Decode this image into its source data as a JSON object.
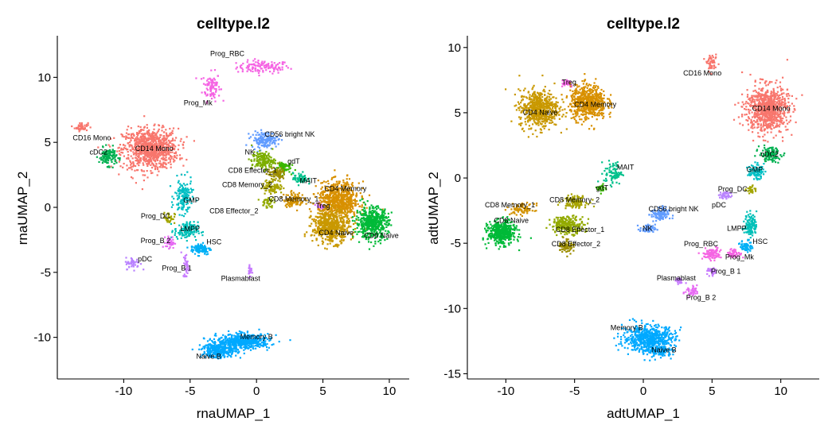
{
  "chart_data": [
    {
      "type": "scatter",
      "title": "celltype.l2",
      "xlabel": "rnaUMAP_1",
      "ylabel": "rnaUMAP_2",
      "xlim": [
        -15,
        11.5
      ],
      "ylim": [
        -13.2,
        13.2
      ],
      "xticks": [
        -10,
        -5,
        0,
        5,
        10
      ],
      "yticks": [
        -10,
        -5,
        0,
        5,
        10
      ],
      "clusters": [
        {
          "name": "Prog_RBC",
          "label": "Prog_RBC",
          "color": "#f564e3",
          "x": 0.5,
          "y": 10.8,
          "sx": 1.8,
          "sy": 0.45,
          "n": 120,
          "lx": -2.2,
          "ly": 11.8
        },
        {
          "name": "Prog_Mk",
          "label": "Prog_Mk",
          "color": "#f564e3",
          "x": -3.4,
          "y": 9.3,
          "sx": 0.6,
          "sy": 1.0,
          "n": 90,
          "lx": -4.4,
          "ly": 8.0
        },
        {
          "name": "CD16 Mono",
          "label": "CD16 Mono",
          "color": "#f8766d",
          "x": -13.2,
          "y": 6.2,
          "sx": 0.45,
          "sy": 0.3,
          "n": 45,
          "lx": -12.4,
          "ly": 5.3
        },
        {
          "name": "CD14 Mono",
          "label": "CD14 Mono",
          "color": "#f8766d",
          "x": -8.0,
          "y": 4.5,
          "sx": 1.9,
          "sy": 1.4,
          "n": 900,
          "lx": -7.7,
          "ly": 4.5
        },
        {
          "name": "cDC2",
          "label": "cDC2",
          "color": "#00b050",
          "x": -11.2,
          "y": 3.9,
          "sx": 0.6,
          "sy": 0.6,
          "n": 120,
          "lx": -11.9,
          "ly": 4.2
        },
        {
          "name": "GMP",
          "label": "GMP",
          "color": "#00bfc4",
          "x": -5.5,
          "y": 0.8,
          "sx": 0.6,
          "sy": 1.2,
          "n": 150,
          "lx": -4.9,
          "ly": 0.5
        },
        {
          "name": "Prog_DC",
          "label": "Prog_DC",
          "color": "#a3a500",
          "x": -6.6,
          "y": -0.8,
          "sx": 0.4,
          "sy": 0.4,
          "n": 40,
          "lx": -7.6,
          "ly": -0.7
        },
        {
          "name": "LMPP",
          "label": "LMPP",
          "color": "#00c0b8",
          "x": -5.3,
          "y": -1.8,
          "sx": 0.8,
          "sy": 0.6,
          "n": 140,
          "lx": -5.0,
          "ly": -1.7
        },
        {
          "name": "Prog_B 2",
          "label": "Prog_B 2",
          "color": "#e76bf3",
          "x": -6.5,
          "y": -2.7,
          "sx": 0.3,
          "sy": 0.4,
          "n": 40,
          "lx": -7.6,
          "ly": -2.6
        },
        {
          "name": "HSC",
          "label": "HSC",
          "color": "#00b0f6",
          "x": -4.2,
          "y": -3.2,
          "sx": 0.7,
          "sy": 0.4,
          "n": 100,
          "lx": -3.2,
          "ly": -2.7
        },
        {
          "name": "pDC",
          "label": "pDC",
          "color": "#b983ff",
          "x": -9.3,
          "y": -4.3,
          "sx": 0.5,
          "sy": 0.4,
          "n": 50,
          "lx": -8.4,
          "ly": -4.0
        },
        {
          "name": "Prog_B 1",
          "label": "Prog_B 1",
          "color": "#c77cff",
          "x": -5.3,
          "y": -4.5,
          "sx": 0.2,
          "sy": 0.9,
          "n": 40,
          "lx": -6.0,
          "ly": -4.7
        },
        {
          "name": "Plasmablast",
          "label": "Plasmablast",
          "color": "#c77cff",
          "x": -0.5,
          "y": -4.8,
          "sx": 0.12,
          "sy": 0.5,
          "n": 25,
          "lx": -1.2,
          "ly": -5.5
        },
        {
          "name": "CD56 bright NK",
          "label": "CD56 bright NK",
          "color": "#619cff",
          "x": 0.6,
          "y": 5.2,
          "sx": 0.9,
          "sy": 0.55,
          "n": 150,
          "lx": 2.5,
          "ly": 5.6
        },
        {
          "name": "NK",
          "label": "NK",
          "color": "#7cae00",
          "x": 0.5,
          "y": 3.6,
          "sx": 0.8,
          "sy": 0.6,
          "n": 160,
          "lx": -0.5,
          "ly": 4.2
        },
        {
          "name": "gdT",
          "label": "gdT",
          "color": "#39b600",
          "x": 2.0,
          "y": 3.1,
          "sx": 0.5,
          "sy": 0.4,
          "n": 60,
          "lx": 2.8,
          "ly": 3.5
        },
        {
          "name": "CD8 Effector_1",
          "label": "CD8 Effector_1",
          "color": "#9c8d00",
          "x": 1.5,
          "y": 2.6,
          "sx": 0.6,
          "sy": 0.4,
          "n": 80,
          "lx": -0.3,
          "ly": 2.8
        },
        {
          "name": "MAIT",
          "label": "MAIT",
          "color": "#00c08b",
          "x": 3.3,
          "y": 2.2,
          "sx": 0.5,
          "sy": 0.4,
          "n": 60,
          "lx": 3.9,
          "ly": 2.0
        },
        {
          "name": "CD8 Memory_2",
          "label": "CD8 Memory_2",
          "color": "#a8a400",
          "x": 1.2,
          "y": 1.6,
          "sx": 0.7,
          "sy": 0.5,
          "n": 100,
          "lx": -0.7,
          "ly": 1.7
        },
        {
          "name": "CD8 Memory_1",
          "label": "CD8 Memory_1",
          "color": "#d39200",
          "x": 2.8,
          "y": 0.6,
          "sx": 0.7,
          "sy": 0.5,
          "n": 100,
          "lx": 2.8,
          "ly": 0.6
        },
        {
          "name": "CD8 Effector_2",
          "label": "CD8 Effector_2",
          "color": "#93aa00",
          "x": 0.8,
          "y": 0.4,
          "sx": 0.4,
          "sy": 0.4,
          "n": 40,
          "lx": -1.7,
          "ly": -0.3
        },
        {
          "name": "Treg",
          "label": "Treg",
          "color": "#db72fb",
          "x": 4.8,
          "y": 0.1,
          "sx": 0.3,
          "sy": 0.3,
          "n": 30,
          "lx": 5.0,
          "ly": 0.1
        },
        {
          "name": "CD4 Memory",
          "label": "CD4 Memory",
          "color": "#d89000",
          "x": 6.2,
          "y": 0.5,
          "sx": 1.4,
          "sy": 1.3,
          "n": 700,
          "lx": 6.7,
          "ly": 1.4
        },
        {
          "name": "CD4 Naive",
          "label": "CD4 Naive",
          "color": "#c99800",
          "x": 5.6,
          "y": -1.5,
          "sx": 1.3,
          "sy": 1.1,
          "n": 500,
          "lx": 6.0,
          "ly": -2.0
        },
        {
          "name": "CD8 Naive",
          "label": "CD8 Naive",
          "color": "#00ba38",
          "x": 8.7,
          "y": -1.2,
          "sx": 1.1,
          "sy": 1.1,
          "n": 500,
          "lx": 9.4,
          "ly": -2.2
        },
        {
          "name": "Memory B",
          "label": "Memory B",
          "color": "#00a9ff",
          "x": -1.0,
          "y": -10.3,
          "sx": 1.8,
          "sy": 0.5,
          "n": 500,
          "lx": 0.0,
          "ly": -10.0
        },
        {
          "name": "Naive B",
          "label": "Naive B",
          "color": "#00a9ff",
          "x": -2.8,
          "y": -11.0,
          "sx": 1.2,
          "sy": 0.5,
          "n": 300,
          "lx": -3.6,
          "ly": -11.5
        }
      ]
    },
    {
      "type": "scatter",
      "title": "celltype.l2",
      "xlabel": "adtUMAP_1",
      "ylabel": "adtUMAP_2",
      "xlim": [
        -12.8,
        12.8
      ],
      "ylim": [
        -15.4,
        10.9
      ],
      "xticks": [
        -10,
        -5,
        0,
        5,
        10
      ],
      "yticks": [
        -15,
        -10,
        -5,
        0,
        5,
        10
      ],
      "clusters": [
        {
          "name": "CD16 Mono",
          "label": "CD16 Mono",
          "color": "#f8766d",
          "x": 5.0,
          "y": 8.8,
          "sx": 0.35,
          "sy": 0.5,
          "n": 50,
          "lx": 4.3,
          "ly": 8.0
        },
        {
          "name": "CD14 Mono",
          "label": "CD14 Mono",
          "color": "#f8766d",
          "x": 9.0,
          "y": 5.3,
          "sx": 1.4,
          "sy": 1.6,
          "n": 800,
          "lx": 9.3,
          "ly": 5.3
        },
        {
          "name": "cDC2",
          "label": "cDC2",
          "color": "#00b050",
          "x": 9.2,
          "y": 1.8,
          "sx": 0.7,
          "sy": 0.5,
          "n": 120,
          "lx": 9.2,
          "ly": 1.8
        },
        {
          "name": "GMP",
          "label": "GMP",
          "color": "#00bfc4",
          "x": 8.2,
          "y": 0.5,
          "sx": 0.5,
          "sy": 0.5,
          "n": 90,
          "lx": 8.1,
          "ly": 0.6
        },
        {
          "name": "Prog_DC",
          "label": "Prog_DC",
          "color": "#a3a500",
          "x": 7.8,
          "y": -0.9,
          "sx": 0.3,
          "sy": 0.3,
          "n": 25,
          "lx": 6.5,
          "ly": -0.9
        },
        {
          "name": "pDC",
          "label": "pDC",
          "color": "#b983ff",
          "x": 6.0,
          "y": -1.3,
          "sx": 0.4,
          "sy": 0.3,
          "n": 40,
          "lx": 5.5,
          "ly": -2.1
        },
        {
          "name": "LMPP",
          "label": "LMPP",
          "color": "#00c0b8",
          "x": 7.8,
          "y": -3.6,
          "sx": 0.4,
          "sy": 0.8,
          "n": 120,
          "lx": 6.8,
          "ly": -3.9
        },
        {
          "name": "HSC",
          "label": "HSC",
          "color": "#00b0f6",
          "x": 7.5,
          "y": -5.2,
          "sx": 0.4,
          "sy": 0.4,
          "n": 60,
          "lx": 8.5,
          "ly": -4.9
        },
        {
          "name": "Prog_Mk",
          "label": "Prog_Mk",
          "color": "#f564e3",
          "x": 6.6,
          "y": -5.8,
          "sx": 0.5,
          "sy": 0.3,
          "n": 50,
          "lx": 7.0,
          "ly": -6.1
        },
        {
          "name": "Prog_RBC",
          "label": "Prog_RBC",
          "color": "#f564e3",
          "x": 5.0,
          "y": -5.8,
          "sx": 0.6,
          "sy": 0.4,
          "n": 90,
          "lx": 4.2,
          "ly": -5.1
        },
        {
          "name": "Prog_B 1",
          "label": "Prog_B 1",
          "color": "#c77cff",
          "x": 5.0,
          "y": -7.2,
          "sx": 0.3,
          "sy": 0.3,
          "n": 30,
          "lx": 6.0,
          "ly": -7.2
        },
        {
          "name": "Plasmablast",
          "label": "Plasmablast",
          "color": "#c77cff",
          "x": 2.6,
          "y": -7.9,
          "sx": 0.3,
          "sy": 0.2,
          "n": 20,
          "lx": 2.4,
          "ly": -7.7
        },
        {
          "name": "Prog_B 2",
          "label": "Prog_B 2",
          "color": "#e76bf3",
          "x": 3.5,
          "y": -8.7,
          "sx": 0.5,
          "sy": 0.4,
          "n": 40,
          "lx": 4.2,
          "ly": -9.2
        },
        {
          "name": "CD56 bright NK",
          "label": "CD56 bright NK",
          "color": "#619cff",
          "x": 1.2,
          "y": -2.8,
          "sx": 0.6,
          "sy": 0.5,
          "n": 100,
          "lx": 2.2,
          "ly": -2.4
        },
        {
          "name": "NK",
          "label": "NK",
          "color": "#619cff",
          "x": 0.3,
          "y": -3.9,
          "sx": 0.5,
          "sy": 0.3,
          "n": 50,
          "lx": 0.3,
          "ly": -3.9
        },
        {
          "name": "MAIT",
          "label": "MAIT",
          "color": "#00c08b",
          "x": -2.2,
          "y": 0.4,
          "sx": 0.6,
          "sy": 0.8,
          "n": 80,
          "lx": -1.3,
          "ly": 0.8
        },
        {
          "name": "gdT",
          "label": "gdT",
          "color": "#39b600",
          "x": -3.0,
          "y": -0.8,
          "sx": 0.3,
          "sy": 0.3,
          "n": 25,
          "lx": -3.0,
          "ly": -0.8
        },
        {
          "name": "Treg",
          "label": "Treg",
          "color": "#f564e3",
          "x": -5.6,
          "y": 7.3,
          "sx": 0.5,
          "sy": 0.3,
          "n": 40,
          "lx": -5.4,
          "ly": 7.3
        },
        {
          "name": "CD4 Naive",
          "label": "CD4 Naive",
          "color": "#c99800",
          "x": -7.6,
          "y": 5.3,
          "sx": 1.3,
          "sy": 1.3,
          "n": 600,
          "lx": -7.5,
          "ly": 5.0
        },
        {
          "name": "CD4 Memory",
          "label": "CD4 Memory",
          "color": "#d89000",
          "x": -4.0,
          "y": 5.8,
          "sx": 1.2,
          "sy": 1.2,
          "n": 600,
          "lx": -3.5,
          "ly": 5.6
        },
        {
          "name": "CD8 Memory_2",
          "label": "CD8 Memory_2",
          "color": "#a8a400",
          "x": -5.0,
          "y": -1.8,
          "sx": 0.8,
          "sy": 0.4,
          "n": 120,
          "lx": -5.0,
          "ly": -1.7
        },
        {
          "name": "CD8 Memory_1",
          "label": "CD8 Memory_1",
          "color": "#d39200",
          "x": -8.8,
          "y": -2.4,
          "sx": 0.8,
          "sy": 0.4,
          "n": 80,
          "lx": -9.7,
          "ly": -2.1
        },
        {
          "name": "CD8 Naive",
          "label": "CD8 Naive",
          "color": "#00ba38",
          "x": -10.3,
          "y": -4.2,
          "sx": 0.9,
          "sy": 0.8,
          "n": 450,
          "lx": -9.6,
          "ly": -3.3
        },
        {
          "name": "CD8 Effector_1",
          "label": "CD8 Effector_1",
          "color": "#93aa00",
          "x": -5.5,
          "y": -3.6,
          "sx": 1.1,
          "sy": 0.6,
          "n": 250,
          "lx": -4.6,
          "ly": -4.0
        },
        {
          "name": "CD8 Effector_2",
          "label": "CD8 Effector_2",
          "color": "#9c8d00",
          "x": -5.6,
          "y": -5.2,
          "sx": 0.5,
          "sy": 0.5,
          "n": 70,
          "lx": -4.9,
          "ly": -5.1
        },
        {
          "name": "Memory B",
          "label": "Memory B",
          "color": "#00a9ff",
          "x": 0.4,
          "y": -12.3,
          "sx": 1.7,
          "sy": 0.9,
          "n": 600,
          "lx": -1.2,
          "ly": -11.5
        },
        {
          "name": "Naive B",
          "label": "Naive B",
          "color": "#00a9ff",
          "x": 1.2,
          "y": -13.3,
          "sx": 0.8,
          "sy": 0.4,
          "n": 100,
          "lx": 1.5,
          "ly": -13.2
        }
      ]
    }
  ]
}
